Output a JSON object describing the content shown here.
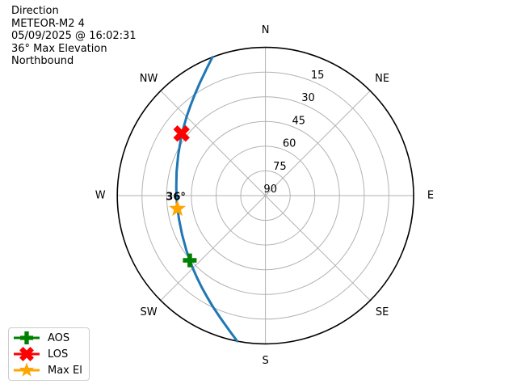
{
  "chart_data": {
    "type": "polar",
    "subtype": "satellite-pass-sky-plot",
    "title_lines": [
      "Direction",
      "METEOR-M2 4",
      "05/09/2025 @ 16:02:31",
      "36° Max Elevation",
      "Northbound"
    ],
    "compass_labels": [
      "N",
      "NE",
      "E",
      "SE",
      "S",
      "SW",
      "W",
      "NW"
    ],
    "elevation_ticks": [
      15,
      30,
      45,
      60,
      75,
      90
    ],
    "elevation_range_deg": [
      0,
      90
    ],
    "grid": true,
    "grid_color": "#b2b2b2",
    "outline_color": "#000000",
    "track": {
      "label": "satellite pass track",
      "color": "#1f77b4",
      "points_az_el": [
        [
          191,
          0
        ],
        [
          195,
          5.2
        ],
        [
          200,
          10.6
        ],
        [
          205,
          15.1
        ],
        [
          210,
          19.0
        ],
        [
          215,
          22.3
        ],
        [
          220,
          25.2
        ],
        [
          225,
          27.6
        ],
        [
          235,
          31.5
        ],
        [
          245,
          34.1
        ],
        [
          255,
          35.6
        ],
        [
          265,
          36.0
        ],
        [
          275,
          35.6
        ],
        [
          285,
          34.1
        ],
        [
          295,
          31.5
        ],
        [
          305,
          27.6
        ],
        [
          310,
          25.2
        ],
        [
          315,
          22.3
        ],
        [
          320,
          19.0
        ],
        [
          325,
          15.1
        ],
        [
          330,
          10.6
        ],
        [
          335,
          5.2
        ],
        [
          339,
          0
        ]
      ]
    },
    "markers": [
      {
        "name": "AOS",
        "shape": "plus",
        "color": "#008000",
        "az": 229.5,
        "el": 29.5
      },
      {
        "name": "LOS",
        "shape": "x",
        "color": "#ff0000",
        "az": 306.5,
        "el": 26.6
      },
      {
        "name": "Max El",
        "shape": "star",
        "color": "#ffa500",
        "az": 261.5,
        "el": 35.9,
        "annotation": "36°"
      }
    ],
    "legend": {
      "position": "lower left",
      "items": [
        {
          "label": "AOS",
          "shape": "plus",
          "color": "#008000"
        },
        {
          "label": "LOS",
          "shape": "x",
          "color": "#ff0000"
        },
        {
          "label": "Max El",
          "shape": "star",
          "color": "#ffa500"
        }
      ]
    }
  }
}
